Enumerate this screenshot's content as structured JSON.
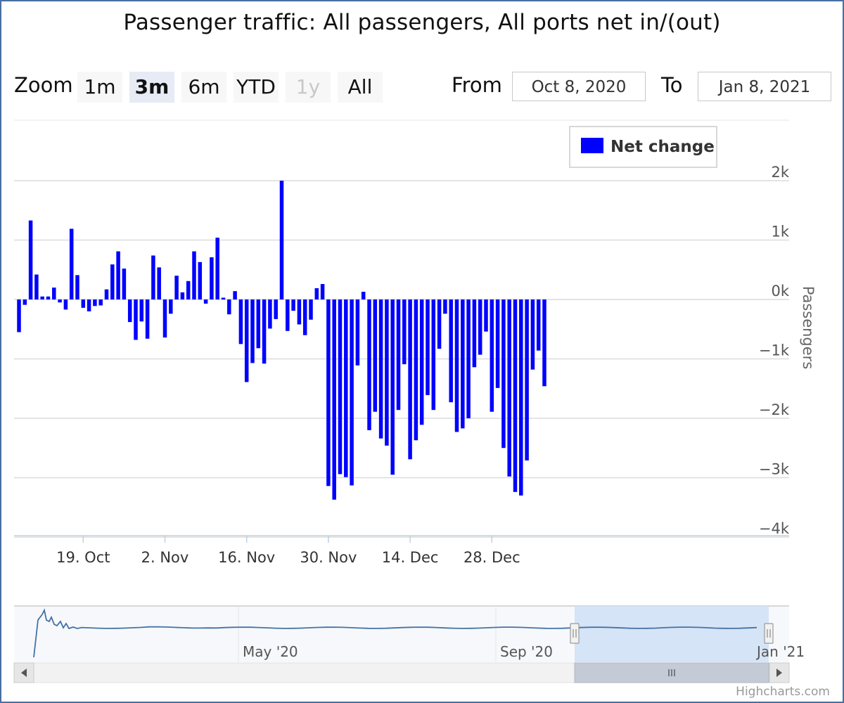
{
  "title": "Passenger traffic: All passengers, All ports net in/(out)",
  "zoom": {
    "label": "Zoom",
    "buttons": [
      "1m",
      "3m",
      "6m",
      "YTD",
      "1y",
      "All"
    ],
    "active": "3m",
    "disabled": [
      "1y"
    ]
  },
  "range": {
    "from_label": "From",
    "from_value": "Oct 8, 2020",
    "to_label": "To",
    "to_value": "Jan 8, 2021"
  },
  "credit": "Highcharts.com",
  "colors": {
    "bar": "#0000ff",
    "grid": "#e0e0e0",
    "navigator_mask": "#cfe0f5",
    "navigator_line": "#4572a7"
  },
  "chart_data": {
    "type": "bar",
    "series": [
      {
        "name": "Net change",
        "values": [
          -550,
          -90,
          1330,
          420,
          50,
          50,
          200,
          -50,
          -170,
          1190,
          410,
          -140,
          -200,
          -110,
          -100,
          170,
          590,
          810,
          520,
          -380,
          -680,
          -370,
          -660,
          740,
          540,
          -640,
          -240,
          400,
          120,
          310,
          810,
          630,
          -70,
          710,
          1040,
          30,
          -250,
          140,
          -750,
          -1390,
          -1070,
          -820,
          -1080,
          -490,
          -330,
          2000,
          -530,
          -190,
          -420,
          -600,
          -340,
          190,
          260,
          -3140,
          -3370,
          -2940,
          -2990,
          -3130,
          -1110,
          130,
          -2200,
          -1890,
          -2340,
          -2460,
          -2950,
          -1860,
          -1090,
          -2690,
          -2370,
          -2110,
          -1610,
          -1860,
          -830,
          -240,
          -1730,
          -2230,
          -2170,
          -2000,
          -1140,
          -930,
          -540,
          -1890,
          -1490,
          -2500,
          -2980,
          -3240,
          -3300,
          -2710,
          -1180,
          -860,
          -1460
        ]
      }
    ],
    "x_start_date": "2020-10-08",
    "x_end_date": "2021-01-07",
    "xticks": [
      "19. Oct",
      "2. Nov",
      "16. Nov",
      "30. Nov",
      "14. Dec",
      "28. Dec"
    ],
    "ylabel": "Passengers",
    "yticks": [
      "2k",
      "1k",
      "0k",
      "−1k",
      "−2k",
      "−3k",
      "−4k"
    ],
    "ylim": [
      -4000,
      2000
    ],
    "grid": true,
    "legend": {
      "position": "top-right"
    },
    "navigator": {
      "labels": [
        "May '20",
        "Sep '20",
        "Jan '21"
      ],
      "selected_range": [
        "2020-10-08",
        "2021-01-08"
      ]
    }
  }
}
